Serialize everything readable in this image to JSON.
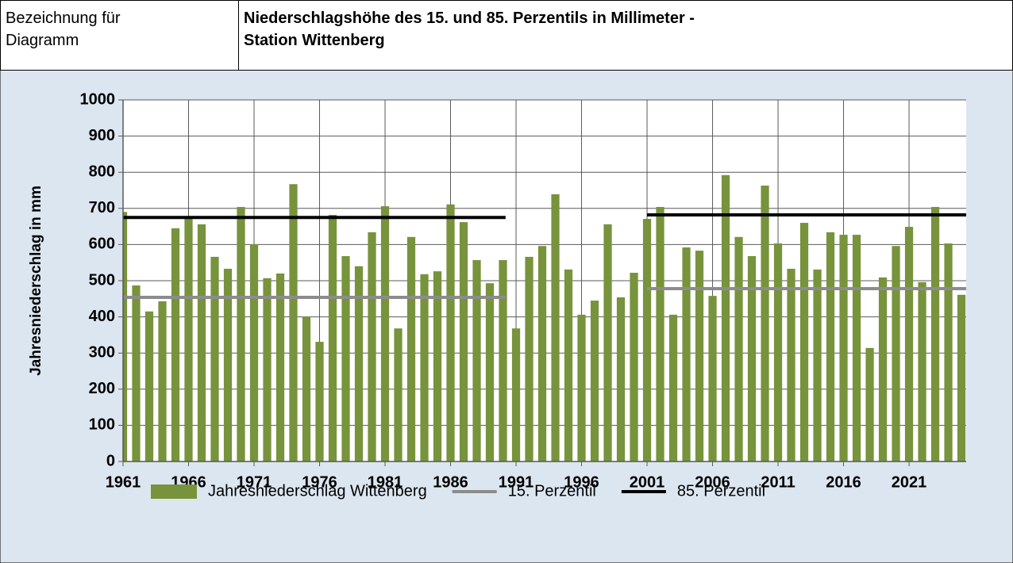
{
  "table": {
    "label": "Bezeichnung für\nDiagramm",
    "title": "Niederschlagshöhe des 15. und 85. Perzentils in Millimeter -\nStation Wittenberg"
  },
  "chart_data": {
    "type": "bar",
    "ylabel": "Jahresniederschlag in mm",
    "x": [
      1961,
      1962,
      1963,
      1964,
      1965,
      1966,
      1967,
      1968,
      1969,
      1970,
      1971,
      1972,
      1973,
      1974,
      1975,
      1976,
      1977,
      1978,
      1979,
      1980,
      1981,
      1982,
      1983,
      1984,
      1985,
      1986,
      1987,
      1988,
      1989,
      1990,
      1991,
      1992,
      1993,
      1994,
      1995,
      1996,
      1997,
      1998,
      1999,
      2000,
      2001,
      2002,
      2003,
      2004,
      2005,
      2006,
      2007,
      2008,
      2009,
      2010,
      2011,
      2012,
      2013,
      2014,
      2015,
      2016,
      2017,
      2018,
      2019,
      2020,
      2021,
      2022,
      2023,
      2024,
      2025
    ],
    "series": [
      {
        "name": "Jahresniederschlag Wittenberg",
        "color": "#77933c",
        "values": [
          690,
          487,
          415,
          443,
          645,
          672,
          656,
          566,
          533,
          704,
          601,
          507,
          520,
          767,
          401,
          331,
          682,
          568,
          540,
          634,
          706,
          368,
          621,
          518,
          526,
          711,
          662,
          557,
          493,
          557,
          368,
          566,
          596,
          739,
          531,
          406,
          445,
          656,
          454,
          522,
          671,
          704,
          406,
          592,
          583,
          458,
          792,
          621,
          568,
          763,
          603,
          533,
          660,
          531,
          634,
          627,
          627,
          314,
          509,
          596,
          649,
          496,
          704,
          603,
          461
        ]
      },
      {
        "name": "15. Perzentil",
        "type": "line",
        "color": "#8c8c8c",
        "x": [
          1961,
          1990.2,
          1995,
          2001,
          2025.36
        ],
        "values": [
          454,
          454,
          null,
          478,
          478
        ]
      },
      {
        "name": "85. Perzentil",
        "type": "line",
        "color": "#000000",
        "x": [
          1961,
          1990.2,
          1995,
          2001,
          2025.36
        ],
        "values": [
          675,
          675,
          null,
          682,
          682
        ]
      }
    ],
    "xlim": [
      1961,
      2025.36
    ],
    "xticks": [
      1961,
      1966,
      1971,
      1976,
      1981,
      1986,
      1991,
      1996,
      2001,
      2006,
      2011,
      2016,
      2021
    ],
    "ylim": [
      0,
      1000
    ],
    "yticks": [
      0,
      100,
      200,
      300,
      400,
      500,
      600,
      700,
      800,
      900,
      1000
    ],
    "grid": true,
    "legend": "bottom"
  }
}
